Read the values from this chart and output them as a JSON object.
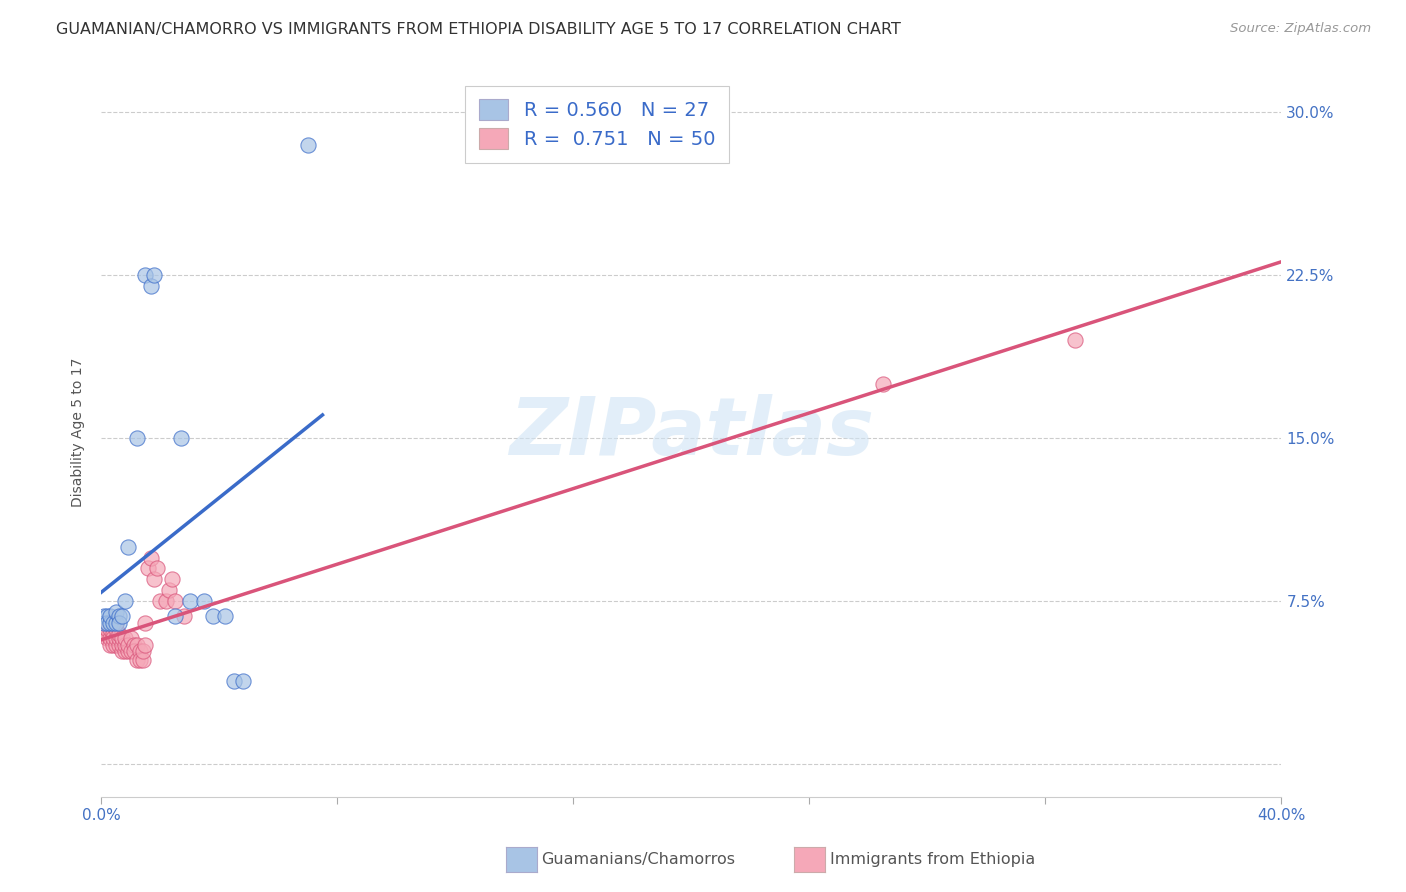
{
  "title": "GUAMANIAN/CHAMORRO VS IMMIGRANTS FROM ETHIOPIA DISABILITY AGE 5 TO 17 CORRELATION CHART",
  "source": "Source: ZipAtlas.com",
  "ylabel": "Disability Age 5 to 17",
  "xlim": [
    0.0,
    0.4
  ],
  "ylim": [
    -0.015,
    0.32
  ],
  "x_ticks": [
    0.0,
    0.08,
    0.16,
    0.24,
    0.32,
    0.4
  ],
  "x_tick_labels": [
    "0.0%",
    "",
    "",
    "",
    "",
    "40.0%"
  ],
  "y_ticks": [
    0.0,
    0.075,
    0.15,
    0.225,
    0.3
  ],
  "y_tick_labels": [
    "",
    "7.5%",
    "15.0%",
    "22.5%",
    "30.0%"
  ],
  "watermark": "ZIPatlas",
  "blue_R": "0.560",
  "blue_N": 27,
  "pink_R": "0.751",
  "pink_N": 50,
  "blue_color": "#a8c4e5",
  "pink_color": "#f5a8b8",
  "blue_line_color": "#3a6bc9",
  "pink_line_color": "#d9547a",
  "legend_R_color": "#3a6bc9",
  "blue_scatter": [
    [
      0.001,
      0.068
    ],
    [
      0.001,
      0.065
    ],
    [
      0.002,
      0.068
    ],
    [
      0.002,
      0.065
    ],
    [
      0.003,
      0.065
    ],
    [
      0.003,
      0.068
    ],
    [
      0.004,
      0.065
    ],
    [
      0.005,
      0.065
    ],
    [
      0.005,
      0.07
    ],
    [
      0.006,
      0.068
    ],
    [
      0.006,
      0.065
    ],
    [
      0.007,
      0.068
    ],
    [
      0.008,
      0.075
    ],
    [
      0.009,
      0.1
    ],
    [
      0.012,
      0.15
    ],
    [
      0.015,
      0.225
    ],
    [
      0.017,
      0.22
    ],
    [
      0.018,
      0.225
    ],
    [
      0.025,
      0.068
    ],
    [
      0.027,
      0.15
    ],
    [
      0.03,
      0.075
    ],
    [
      0.035,
      0.075
    ],
    [
      0.038,
      0.068
    ],
    [
      0.042,
      0.068
    ],
    [
      0.045,
      0.038
    ],
    [
      0.048,
      0.038
    ],
    [
      0.07,
      0.285
    ]
  ],
  "pink_scatter": [
    [
      0.001,
      0.065
    ],
    [
      0.001,
      0.06
    ],
    [
      0.002,
      0.06
    ],
    [
      0.002,
      0.058
    ],
    [
      0.002,
      0.062
    ],
    [
      0.003,
      0.055
    ],
    [
      0.003,
      0.058
    ],
    [
      0.003,
      0.062
    ],
    [
      0.004,
      0.055
    ],
    [
      0.004,
      0.06
    ],
    [
      0.004,
      0.058
    ],
    [
      0.005,
      0.055
    ],
    [
      0.005,
      0.058
    ],
    [
      0.005,
      0.062
    ],
    [
      0.005,
      0.065
    ],
    [
      0.006,
      0.055
    ],
    [
      0.006,
      0.058
    ],
    [
      0.006,
      0.06
    ],
    [
      0.007,
      0.052
    ],
    [
      0.007,
      0.055
    ],
    [
      0.007,
      0.058
    ],
    [
      0.008,
      0.052
    ],
    [
      0.008,
      0.055
    ],
    [
      0.008,
      0.058
    ],
    [
      0.009,
      0.052
    ],
    [
      0.009,
      0.055
    ],
    [
      0.01,
      0.058
    ],
    [
      0.01,
      0.052
    ],
    [
      0.011,
      0.055
    ],
    [
      0.011,
      0.052
    ],
    [
      0.012,
      0.055
    ],
    [
      0.012,
      0.048
    ],
    [
      0.013,
      0.052
    ],
    [
      0.013,
      0.048
    ],
    [
      0.014,
      0.048
    ],
    [
      0.014,
      0.052
    ],
    [
      0.015,
      0.065
    ],
    [
      0.015,
      0.055
    ],
    [
      0.016,
      0.09
    ],
    [
      0.017,
      0.095
    ],
    [
      0.018,
      0.085
    ],
    [
      0.019,
      0.09
    ],
    [
      0.02,
      0.075
    ],
    [
      0.022,
      0.075
    ],
    [
      0.023,
      0.08
    ],
    [
      0.024,
      0.085
    ],
    [
      0.025,
      0.075
    ],
    [
      0.028,
      0.068
    ],
    [
      0.265,
      0.175
    ],
    [
      0.33,
      0.195
    ]
  ],
  "background_color": "#ffffff",
  "grid_color": "#cccccc",
  "title_fontsize": 11.5,
  "axis_label_fontsize": 10,
  "tick_fontsize": 11
}
